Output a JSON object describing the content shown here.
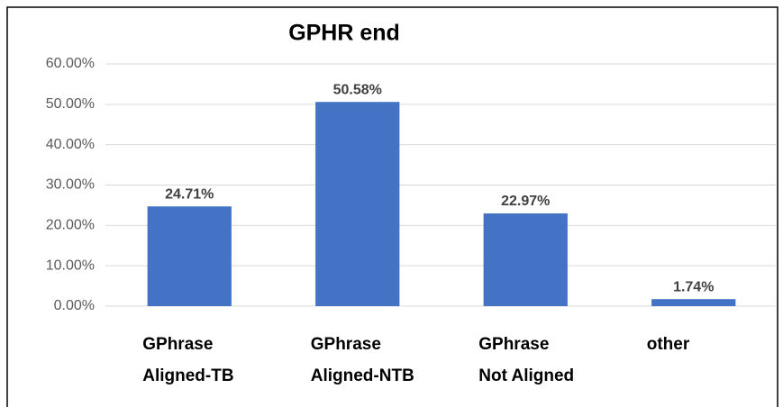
{
  "chart_data": {
    "type": "bar",
    "title": "GPHR  end",
    "categories": [
      [
        "GPhrase",
        "Aligned-TB"
      ],
      [
        "GPhrase",
        "Aligned-NTB"
      ],
      [
        "GPhrase",
        "Not Aligned"
      ],
      [
        "other"
      ]
    ],
    "values": [
      24.71,
      50.58,
      22.97,
      1.74
    ],
    "value_labels": [
      "24.71%",
      "50.58%",
      "22.97%",
      "1.74%"
    ],
    "color": "#4472c4",
    "ylim": [
      0,
      60
    ],
    "yticks": [
      {
        "value": 0,
        "label": "0.00%"
      },
      {
        "value": 10,
        "label": "10.00%"
      },
      {
        "value": 20,
        "label": "20.00%"
      },
      {
        "value": 30,
        "label": "30.00%"
      },
      {
        "value": 40,
        "label": "40.00%"
      },
      {
        "value": 50,
        "label": "50.00%"
      },
      {
        "value": 60,
        "label": "60.00%"
      }
    ],
    "grid": true
  }
}
